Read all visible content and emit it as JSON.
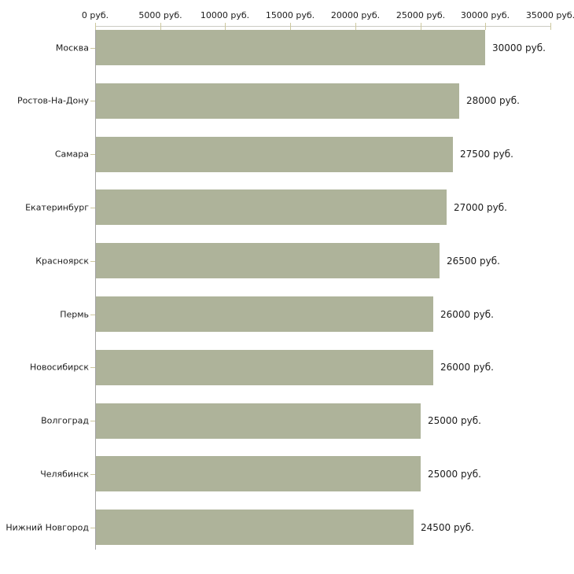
{
  "chart_data": {
    "type": "bar",
    "orientation": "horizontal",
    "title": "",
    "categories": [
      "Москва",
      "Ростов-На-Дону",
      "Самара",
      "Екатеринбург",
      "Красноярск",
      "Пермь",
      "Новосибирск",
      "Волгоград",
      "Челябинск",
      "Нижний Новгород"
    ],
    "values": [
      30000,
      28000,
      27500,
      27000,
      26500,
      26000,
      26000,
      25000,
      25000,
      24500
    ],
    "value_labels": [
      "30000 руб.",
      "28000 руб.",
      "27500 руб.",
      "27000 руб.",
      "26500 руб.",
      "26000 руб.",
      "26000 руб.",
      "25000 руб.",
      "25000 руб.",
      "24500 руб."
    ],
    "x_axis": {
      "position": "top",
      "min": 0,
      "max": 35000,
      "ticks": [
        0,
        5000,
        10000,
        15000,
        20000,
        25000,
        30000,
        35000
      ],
      "tick_labels": [
        "0 руб.",
        "5000 руб.",
        "10000 руб.",
        "15000 руб.",
        "20000 руб.",
        "25000 руб.",
        "30000 руб.",
        "35000 руб."
      ]
    },
    "legend": null,
    "grid": false,
    "colors": {
      "bar": "#aeb39a",
      "x_axis_line": "#cbcbc3",
      "y_axis_line": "#a3a3a3",
      "tick_mark": "#cdc89e",
      "text": "#1c1c1c",
      "background": "#ffffff"
    }
  }
}
